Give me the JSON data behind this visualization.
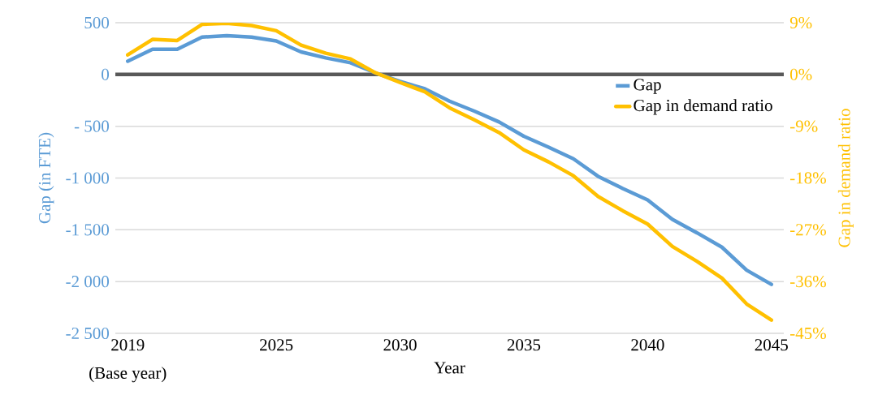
{
  "chart_data": {
    "type": "line",
    "xlabel": "Year",
    "ylabel": "Gap (in FTE)",
    "y2label": "Gap in demand ratio",
    "x": [
      2019,
      2020,
      2021,
      2022,
      2023,
      2024,
      2025,
      2026,
      2027,
      2028,
      2029,
      2030,
      2031,
      2032,
      2033,
      2034,
      2035,
      2036,
      2037,
      2038,
      2039,
      2040,
      2041,
      2042,
      2043,
      2044,
      2045
    ],
    "xlim": [
      2018.5,
      2045.5
    ],
    "xticks": [
      2019,
      2025,
      2030,
      2035,
      2040,
      2045
    ],
    "annotations": [
      "(Base year)"
    ],
    "ylim": [
      -2500,
      500
    ],
    "yticks": [
      {
        "value": -2500,
        "label": "-2 500"
      },
      {
        "value": -2000,
        "label": "-2 000"
      },
      {
        "value": -1500,
        "label": "-1 500"
      },
      {
        "value": -1000,
        "label": "-1 000"
      },
      {
        "value": -500,
        "label": "- 500"
      },
      0,
      500
    ],
    "y2lim": [
      -45,
      9
    ],
    "y2ticks": [
      {
        "value": -45,
        "label": "-45%"
      },
      {
        "value": -36,
        "label": "-36%"
      },
      {
        "value": -27,
        "label": "-27%"
      },
      {
        "value": -18,
        "label": "-18%"
      },
      {
        "value": -9,
        "label": "-9%"
      },
      {
        "value": 0,
        "label": "0%"
      },
      {
        "value": 9,
        "label": "9%"
      }
    ],
    "grid": "y",
    "legend": "top right",
    "ref_lines": [
      {
        "axis": "y",
        "value": 0,
        "color": "#595959"
      }
    ],
    "series": [
      {
        "name": "Gap",
        "color": "#5b9bd5",
        "values": [
          128,
          244,
          244,
          361,
          375,
          361,
          324,
          218,
          160,
          113,
          16,
          -67,
          -138,
          -258,
          -354,
          -459,
          -597,
          -702,
          -814,
          -984,
          -1102,
          -1212,
          -1400,
          -1530,
          -1668,
          -1890,
          -2027
        ]
      },
      {
        "name": "Gap in demand ratio",
        "color": "#ffc000",
        "axis": "y2",
        "values": [
          3.4,
          6.1,
          5.9,
          8.7,
          8.9,
          8.5,
          7.6,
          5.1,
          3.7,
          2.7,
          0.3,
          -1.4,
          -3.0,
          -5.8,
          -7.9,
          -10.1,
          -13.1,
          -15.2,
          -17.6,
          -21.2,
          -23.7,
          -26.0,
          -29.9,
          -32.5,
          -35.4,
          -39.9,
          -42.7
        ]
      }
    ]
  }
}
